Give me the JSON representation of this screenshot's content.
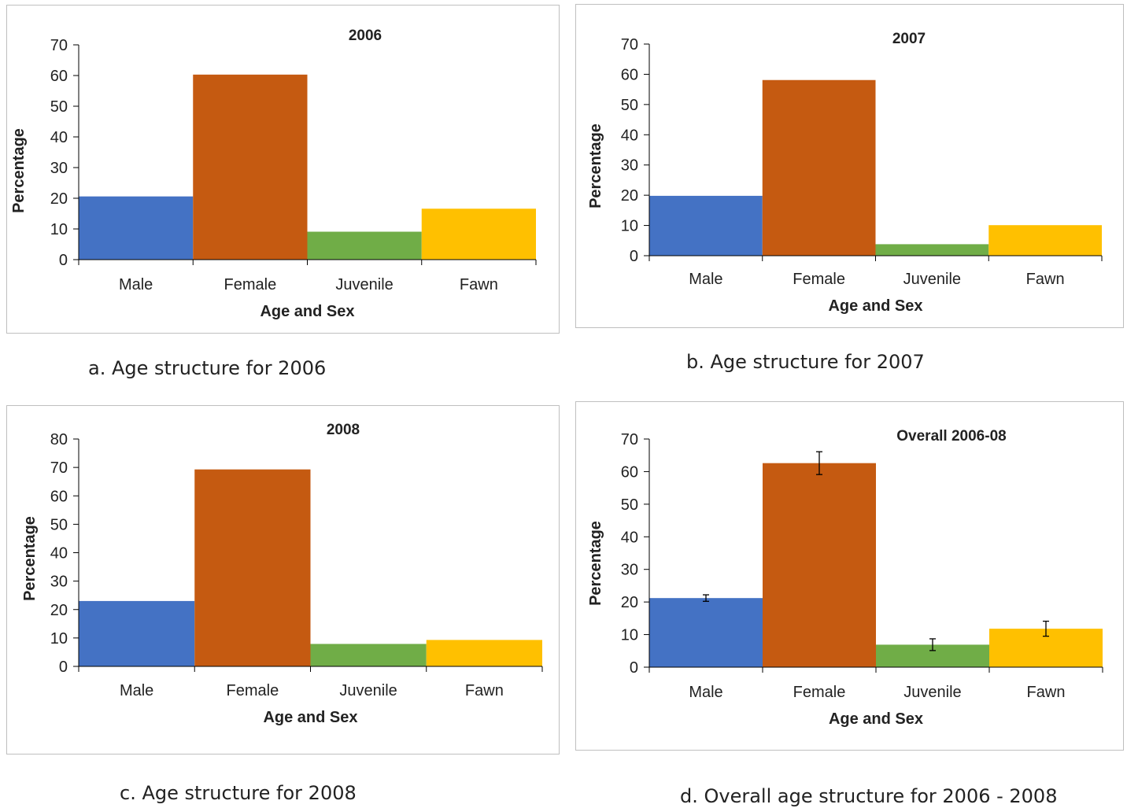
{
  "chart_data": [
    {
      "type": "bar",
      "title": "2006",
      "xlabel": "Age and Sex",
      "ylabel": "Percentage",
      "categories": [
        "Male",
        "Female",
        "Juvenile",
        "Fawn"
      ],
      "values": [
        20.6,
        60.3,
        9.1,
        16.6
      ],
      "colors": [
        "#4472C4",
        "#C55A11",
        "#70AD47",
        "#FFC000"
      ],
      "ylim": [
        0,
        70
      ],
      "yticks": [
        0,
        10,
        20,
        30,
        40,
        50,
        60,
        70
      ],
      "grid": false,
      "caption": "a. Age structure for 2006"
    },
    {
      "type": "bar",
      "title": "2007",
      "xlabel": "Age and Sex",
      "ylabel": "Percentage",
      "categories": [
        "Male",
        "Female",
        "Juvenile",
        "Fawn"
      ],
      "values": [
        19.8,
        58.1,
        3.8,
        10.1
      ],
      "colors": [
        "#4472C4",
        "#C55A11",
        "#70AD47",
        "#FFC000"
      ],
      "ylim": [
        0,
        70
      ],
      "yticks": [
        0,
        10,
        20,
        30,
        40,
        50,
        60,
        70
      ],
      "grid": false,
      "caption": "b. Age structure for 2007"
    },
    {
      "type": "bar",
      "title": "2008",
      "xlabel": "Age and Sex",
      "ylabel": "Percentage",
      "categories": [
        "Male",
        "Female",
        "Juvenile",
        "Fawn"
      ],
      "values": [
        23.0,
        69.3,
        7.9,
        9.3
      ],
      "colors": [
        "#4472C4",
        "#C55A11",
        "#70AD47",
        "#FFC000"
      ],
      "ylim": [
        0,
        80
      ],
      "yticks": [
        0,
        10,
        20,
        30,
        40,
        50,
        60,
        70,
        80
      ],
      "grid": false,
      "caption": "c. Age structure for 2008"
    },
    {
      "type": "bar",
      "title": "Overall 2006-08",
      "xlabel": "Age and Sex",
      "ylabel": "Percentage",
      "categories": [
        "Male",
        "Female",
        "Juvenile",
        "Fawn"
      ],
      "values": [
        21.2,
        62.6,
        6.9,
        11.8
      ],
      "errors": [
        1.0,
        3.5,
        1.8,
        2.3
      ],
      "colors": [
        "#4472C4",
        "#C55A11",
        "#70AD47",
        "#FFC000"
      ],
      "ylim": [
        0,
        70
      ],
      "yticks": [
        0,
        10,
        20,
        30,
        40,
        50,
        60,
        70
      ],
      "grid": false,
      "caption": "d. Overall age structure for 2006 - 2008"
    }
  ]
}
